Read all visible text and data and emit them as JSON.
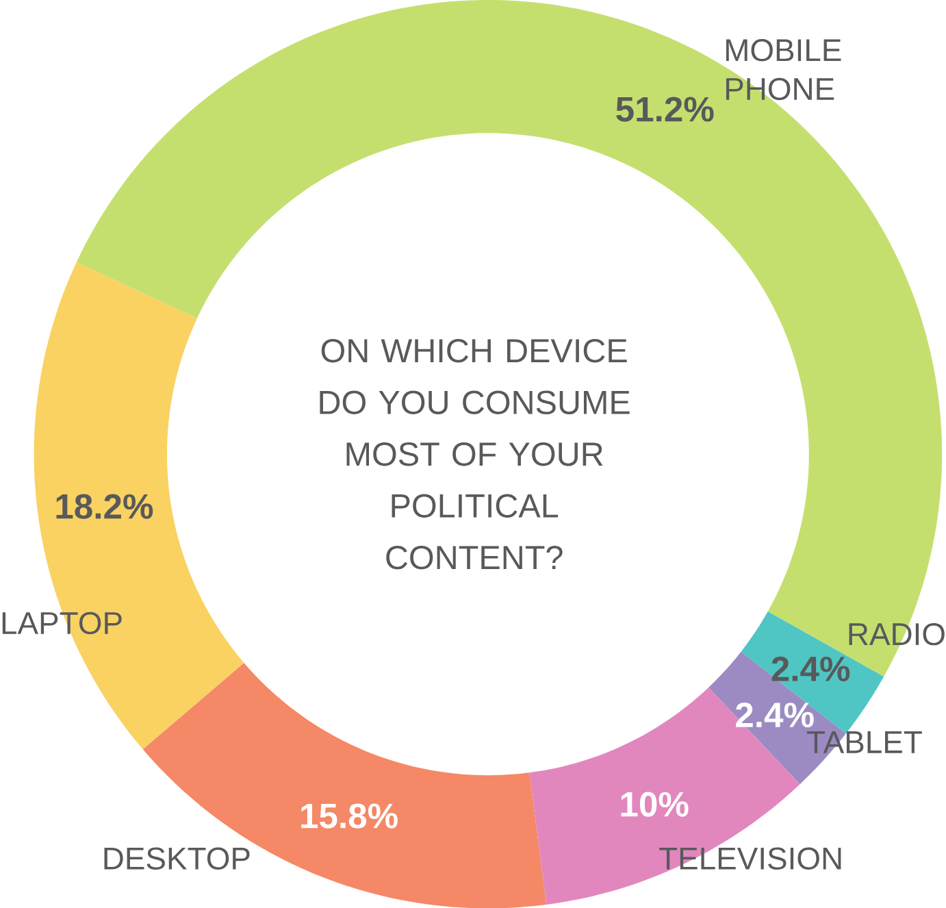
{
  "chart_data": {
    "type": "donut",
    "title": "ON WHICH DEVICE DO YOU CONSUME MOST OF YOUR POLITICAL CONTENT?",
    "categories": [
      "MOBILE PHONE",
      "RADIO",
      "TABLET",
      "TELEVISION",
      "DESKTOP",
      "LAPTOP"
    ],
    "values": [
      51.2,
      2.4,
      2.4,
      10,
      15.8,
      18.2
    ],
    "colors": [
      "#c5df6f",
      "#4fc6c4",
      "#9b8bc2",
      "#e287bd",
      "#f58866",
      "#f9d261"
    ],
    "value_labels": [
      "51.2%",
      "2.4%",
      "2.4%",
      "10%",
      "15.8%",
      "18.2%"
    ]
  }
}
